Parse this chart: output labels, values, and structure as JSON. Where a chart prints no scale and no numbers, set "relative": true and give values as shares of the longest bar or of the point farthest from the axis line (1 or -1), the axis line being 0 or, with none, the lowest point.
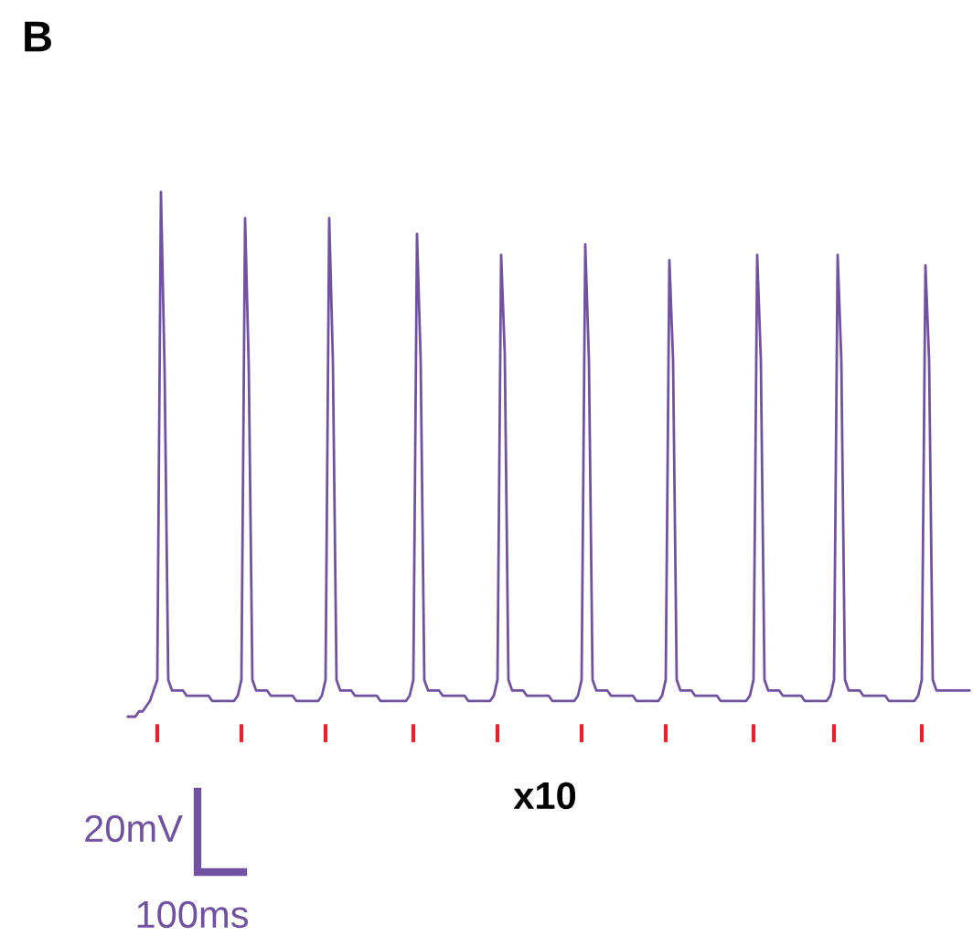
{
  "chart_data": {
    "type": "line",
    "relative": true,
    "line_style": "solid",
    "annotations": [
      "B",
      "x10",
      "20mV",
      "100ms"
    ],
    "categories": [
      null,
      null,
      null,
      null,
      null,
      null,
      null,
      null,
      null,
      null,
      null,
      null,
      null,
      null,
      null,
      null,
      null,
      null,
      null,
      null,
      null,
      null,
      null,
      null,
      null,
      null,
      null,
      null,
      null,
      null,
      null,
      null,
      null,
      null,
      null,
      null,
      null,
      null,
      null,
      null,
      null,
      null,
      null,
      null,
      null,
      null,
      null,
      null,
      null,
      null,
      null,
      null,
      null,
      null,
      null,
      null,
      null,
      null,
      null,
      null,
      null,
      null,
      null,
      null,
      null,
      null,
      null,
      null,
      null,
      null,
      null,
      null,
      null,
      null,
      null,
      null,
      null,
      null,
      null,
      null,
      null,
      null,
      null,
      null,
      null,
      null,
      null,
      null,
      null,
      null,
      null,
      null,
      null,
      null,
      null,
      null,
      null,
      null,
      null,
      null,
      null,
      null,
      null,
      null,
      null,
      null,
      null,
      null,
      null,
      null,
      null,
      null,
      null,
      null,
      null,
      null,
      null,
      null,
      null,
      null,
      null,
      null,
      null,
      null,
      null,
      null,
      null,
      null,
      null,
      null,
      null,
      null,
      null,
      null,
      null,
      null,
      null,
      null,
      null,
      null,
      null,
      null,
      null,
      null,
      null,
      null,
      null,
      null,
      null,
      null,
      null,
      null,
      null,
      null,
      null,
      null,
      null,
      null,
      null,
      null,
      null,
      null,
      null,
      null,
      null,
      null,
      null,
      null,
      null,
      null,
      null,
      null,
      null,
      null,
      null,
      null,
      null,
      null,
      null,
      null,
      null,
      null,
      null,
      null,
      null,
      null,
      null,
      null,
      null,
      null,
      null,
      null,
      null,
      null,
      null,
      null,
      null,
      null,
      null,
      null,
      null,
      null,
      null,
      null,
      null,
      null,
      null,
      null,
      null,
      null,
      null,
      null,
      null,
      null,
      null,
      null,
      null,
      null,
      null,
      null,
      null,
      null,
      null,
      null,
      null,
      null,
      null,
      null,
      null,
      null,
      null
    ],
    "series": [
      {
        "color": "#7052a0",
        "values": [
          0,
          0,
          0,
          0.01,
          0.01,
          0.02,
          0.03,
          0.05,
          0.07,
          1.0,
          0.66,
          0.07,
          0.05,
          0.05,
          0.05,
          0.05,
          0.04,
          0.04,
          0.04,
          0.04,
          0.04,
          0.04,
          0.04,
          0.03,
          0.03,
          0.03,
          0.03,
          0.03,
          0.03,
          0.03,
          0.04,
          0.07,
          0.95,
          0.67,
          0.07,
          0.05,
          0.05,
          0.05,
          0.05,
          0.04,
          0.04,
          0.04,
          0.04,
          0.04,
          0.04,
          0.04,
          0.03,
          0.03,
          0.03,
          0.03,
          0.03,
          0.03,
          0.03,
          0.04,
          0.07,
          0.95,
          0.68,
          0.07,
          0.05,
          0.05,
          0.05,
          0.05,
          0.04,
          0.04,
          0.04,
          0.04,
          0.04,
          0.04,
          0.04,
          0.03,
          0.03,
          0.03,
          0.03,
          0.03,
          0.03,
          0.03,
          0.03,
          0.04,
          0.07,
          0.92,
          0.68,
          0.07,
          0.05,
          0.05,
          0.05,
          0.05,
          0.04,
          0.04,
          0.04,
          0.04,
          0.04,
          0.04,
          0.04,
          0.03,
          0.03,
          0.03,
          0.03,
          0.03,
          0.03,
          0.03,
          0.04,
          0.07,
          0.88,
          0.69,
          0.07,
          0.05,
          0.05,
          0.05,
          0.05,
          0.04,
          0.04,
          0.04,
          0.04,
          0.04,
          0.04,
          0.04,
          0.03,
          0.03,
          0.03,
          0.03,
          0.03,
          0.03,
          0.03,
          0.04,
          0.07,
          0.9,
          0.68,
          0.07,
          0.05,
          0.05,
          0.05,
          0.05,
          0.04,
          0.04,
          0.04,
          0.04,
          0.04,
          0.04,
          0.04,
          0.03,
          0.03,
          0.03,
          0.03,
          0.03,
          0.03,
          0.03,
          0.04,
          0.07,
          0.87,
          0.68,
          0.07,
          0.05,
          0.05,
          0.05,
          0.05,
          0.04,
          0.04,
          0.04,
          0.04,
          0.04,
          0.04,
          0.04,
          0.03,
          0.03,
          0.03,
          0.03,
          0.03,
          0.03,
          0.03,
          0.03,
          0.04,
          0.07,
          0.88,
          0.68,
          0.07,
          0.05,
          0.05,
          0.05,
          0.05,
          0.04,
          0.04,
          0.04,
          0.04,
          0.04,
          0.04,
          0.03,
          0.03,
          0.03,
          0.03,
          0.03,
          0.03,
          0.03,
          0.04,
          0.07,
          0.88,
          0.68,
          0.07,
          0.05,
          0.05,
          0.05,
          0.05,
          0.04,
          0.04,
          0.04,
          0.04,
          0.04,
          0.04,
          0.04,
          0.03,
          0.03,
          0.03,
          0.03,
          0.03,
          0.03,
          0.03,
          0.03,
          0.04,
          0.07,
          0.86,
          0.68,
          0.07,
          0.05,
          0.05,
          0.05,
          0.05,
          0.05,
          0.05,
          0.05,
          0.05,
          0.05,
          0.05
        ]
      }
    ]
  }
}
